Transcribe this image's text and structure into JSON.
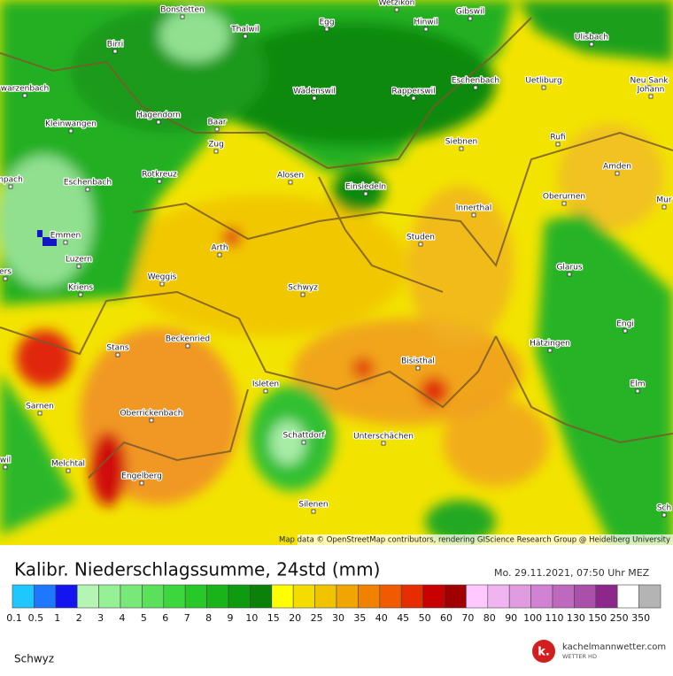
{
  "map": {
    "places": [
      "Wetzikon",
      "Bonstetten",
      "Egg",
      "Hinwil",
      "Gibswil",
      "Thalwil",
      "Birri",
      "Ulisbach",
      "warzenbach",
      "Wädenswil",
      "Rapperswil",
      "Eschenbach",
      "Uetliburg",
      "Neu Sank",
      "Johann",
      "Hagendorn",
      "Kleinwangen",
      "Baar",
      "Zug",
      "Siebnen",
      "Rufi",
      "Rotkreuz",
      "Eschenbach",
      "Alosen",
      "Einsiedeln",
      "Amden",
      "npach",
      "Oberurnen",
      "Innerthal",
      "Mur",
      "Emmen",
      "Arth",
      "Studen",
      "Luzern",
      "Glarus",
      "ers",
      "Weggis",
      "Kriens",
      "Schwyz",
      "Engi",
      "Beckenried",
      "Stans",
      "Hätzingen",
      "Bisisthal",
      "Elm",
      "Isleten",
      "Sarnen",
      "Oberrickenbach",
      "Schattdorf",
      "Unterschächen",
      "wil",
      "Melchtal",
      "Engelberg",
      "Silenen",
      "Sch"
    ],
    "attribution": "Map data © OpenStreetMap contributors, rendering GIScience Research Group @ Heidelberg University"
  },
  "title": "Kalibr. Niederschlagssumme, 24std (mm)",
  "timestamp": "Mo. 29.11.2021, 07:50 Uhr MEZ",
  "legend": {
    "labels": [
      0.1,
      0.5,
      1,
      2,
      3,
      4,
      5,
      6,
      7,
      8,
      9,
      10,
      15,
      20,
      25,
      30,
      35,
      40,
      45,
      50,
      60,
      70,
      80,
      90,
      100,
      110,
      130,
      150,
      250,
      350
    ],
    "colors": [
      "#1ec8ff",
      "#1e78ff",
      "#1414f0",
      "#b4f5b4",
      "#96f096",
      "#78e878",
      "#5ae05a",
      "#3cd73c",
      "#28c828",
      "#19b419",
      "#0f9b0f",
      "#0a820a",
      "#ffff00",
      "#f5dc00",
      "#f0c300",
      "#f0a500",
      "#f08200",
      "#f05a00",
      "#e62d00",
      "#c80000",
      "#a00000",
      "#ffc8ff",
      "#f0b4f0",
      "#e19be1",
      "#d282d2",
      "#be69be",
      "#aa50aa",
      "#8c288c",
      "#ffffff",
      "#b4b4b4",
      "#8c8c8c",
      "#646464"
    ]
  },
  "region": "Schwyz",
  "brand": {
    "mark": "k.",
    "name": "kachelmannwetter.com",
    "sub": "WETTER HD"
  }
}
